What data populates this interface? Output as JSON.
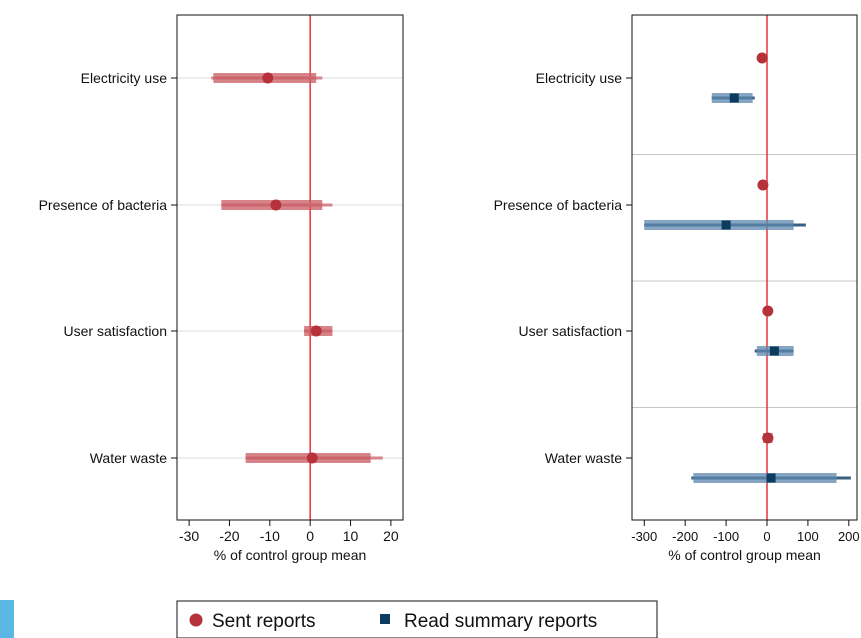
{
  "colors": {
    "sent_marker": "#b5323a",
    "sent_ci90": "#c95a63",
    "sent_ci95": "#d5868d",
    "read_marker": "#0c3b60",
    "read_ci90": "#5d87ad",
    "read_ci95": "#3b5f83",
    "zero_line": "#e8343a",
    "gridline": "#dddddd",
    "separator": "#c7c7c7"
  },
  "legend": {
    "sent_label": "Sent reports",
    "read_label": "Read summary reports"
  },
  "chart_data": [
    {
      "type": "scatter",
      "subtype": "coefficient-plot",
      "title": "",
      "xlabel": "% of control group mean",
      "ylabel": "",
      "xlim": [
        -33,
        23
      ],
      "xticks": [
        -30,
        -20,
        -10,
        0,
        10,
        20
      ],
      "categories": [
        "Electricity use",
        "Presence of bacteria",
        "User satisfaction",
        "Water waste"
      ],
      "reference_line": 0,
      "grid": "horizontal",
      "series": [
        {
          "name": "Sent reports",
          "marker": "circle",
          "points": [
            {
              "category": "Electricity use",
              "estimate": -10.5,
              "ci90": [
                -24,
                1.5
              ],
              "ci95": [
                -24.5,
                3
              ]
            },
            {
              "category": "Presence of bacteria",
              "estimate": -8.5,
              "ci90": [
                -22,
                3
              ],
              "ci95": [
                -22,
                5.5
              ]
            },
            {
              "category": "User satisfaction",
              "estimate": 1.5,
              "ci90": [
                -1.5,
                5.5
              ],
              "ci95": [
                -1.5,
                5.5
              ]
            },
            {
              "category": "Water waste",
              "estimate": 0.5,
              "ci90": [
                -16,
                15
              ],
              "ci95": [
                -16,
                18
              ]
            }
          ]
        }
      ]
    },
    {
      "type": "scatter",
      "subtype": "coefficient-plot",
      "title": "",
      "xlabel": "% of control group mean",
      "ylabel": "",
      "xlim": [
        -330,
        220
      ],
      "xticks": [
        -300,
        -200,
        -100,
        0,
        100,
        200
      ],
      "categories": [
        "Electricity use",
        "Presence of bacteria",
        "User satisfaction",
        "Water waste"
      ],
      "reference_line": 0,
      "grid": "separators",
      "series": [
        {
          "name": "Sent reports",
          "marker": "circle",
          "points": [
            {
              "category": "Electricity use",
              "estimate": -12,
              "ci90": [
                -16,
                -8
              ],
              "ci95": [
                -16,
                -8
              ]
            },
            {
              "category": "Presence of bacteria",
              "estimate": -10,
              "ci90": [
                -14,
                -6
              ],
              "ci95": [
                -14,
                -6
              ]
            },
            {
              "category": "User satisfaction",
              "estimate": 2,
              "ci90": [
                -2,
                6
              ],
              "ci95": [
                -2,
                6
              ]
            },
            {
              "category": "Water waste",
              "estimate": 2,
              "ci90": [
                -10,
                14
              ],
              "ci95": [
                -12,
                16
              ]
            }
          ]
        },
        {
          "name": "Read summary reports",
          "marker": "square",
          "points": [
            {
              "category": "Electricity use",
              "estimate": -80,
              "ci90": [
                -135,
                -35
              ],
              "ci95": [
                -135,
                -30
              ]
            },
            {
              "category": "Presence of bacteria",
              "estimate": -100,
              "ci90": [
                -300,
                65
              ],
              "ci95": [
                -300,
                95
              ]
            },
            {
              "category": "User satisfaction",
              "estimate": 18,
              "ci90": [
                -25,
                65
              ],
              "ci95": [
                -30,
                65
              ]
            },
            {
              "category": "Water waste",
              "estimate": 10,
              "ci90": [
                -180,
                170
              ],
              "ci95": [
                -185,
                205
              ]
            }
          ]
        }
      ]
    }
  ]
}
